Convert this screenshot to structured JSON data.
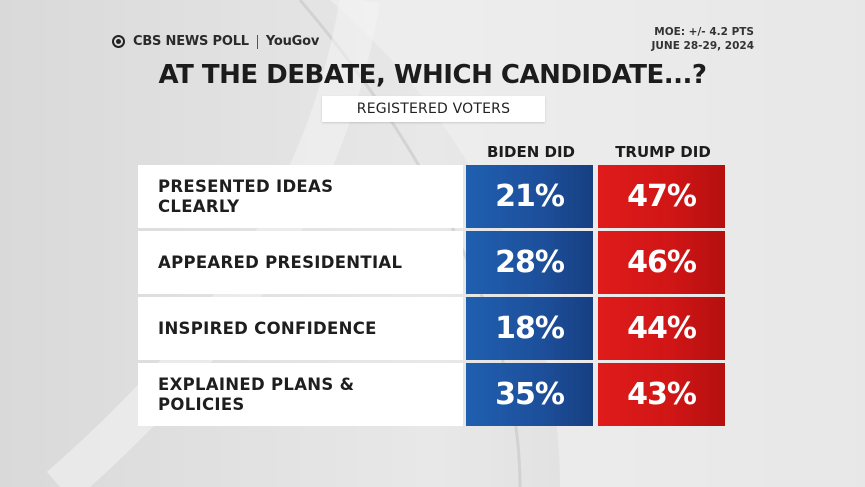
{
  "header": {
    "brand": "CBS NEWS POLL",
    "partner": "YouGov",
    "moe": "MOE: +/- 4.2 PTS",
    "dates": "JUNE 28-29, 2024"
  },
  "title": "AT THE DEBATE, WHICH CANDIDATE...?",
  "subtitle": "REGISTERED VOTERS",
  "colors": {
    "biden": "#1d4f9a",
    "trump": "#d01515"
  },
  "chart_data": {
    "type": "table",
    "title": "AT THE DEBATE, WHICH CANDIDATE...?",
    "subtitle": "REGISTERED VOTERS",
    "columns": [
      "BIDEN DID",
      "TRUMP DID"
    ],
    "rows": [
      {
        "label": "PRESENTED IDEAS CLEARLY",
        "label_lines": [
          "PRESENTED IDEAS",
          "CLEARLY"
        ],
        "biden": "21%",
        "trump": "47%"
      },
      {
        "label": "APPEARED PRESIDENTIAL",
        "label_lines": [
          "APPEARED PRESIDENTIAL"
        ],
        "biden": "28%",
        "trump": "46%"
      },
      {
        "label": "INSPIRED CONFIDENCE",
        "label_lines": [
          "INSPIRED CONFIDENCE"
        ],
        "biden": "18%",
        "trump": "44%"
      },
      {
        "label": "EXPLAINED PLANS & POLICIES",
        "label_lines": [
          "EXPLAINED PLANS &",
          "POLICIES"
        ],
        "biden": "35%",
        "trump": "43%"
      }
    ]
  }
}
